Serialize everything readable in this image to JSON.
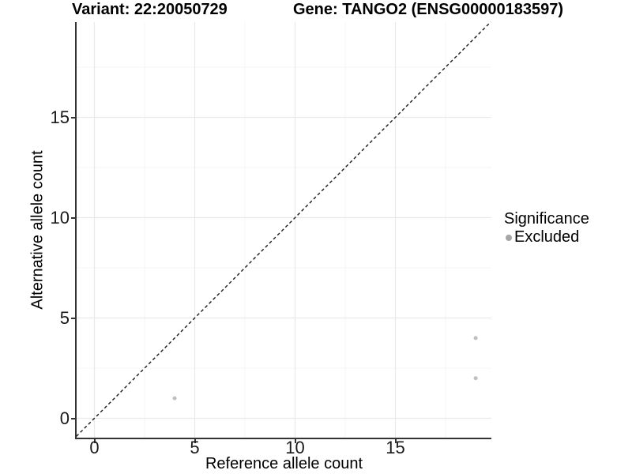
{
  "figure": {
    "title_variant": "Variant: 22:20050729",
    "title_gene": "Gene: TANGO2 (ENSG00000183597)"
  },
  "chart_data": {
    "type": "scatter",
    "title": "Variant: 22:20050729   Gene: TANGO2 (ENSG00000183597)",
    "xlabel": "Reference allele count",
    "ylabel": "Alternative allele count",
    "xlim": [
      -0.9,
      19.8
    ],
    "ylim": [
      -0.95,
      19.75
    ],
    "x_ticks": [
      0,
      5,
      10,
      15
    ],
    "y_ticks": [
      0,
      5,
      10,
      15
    ],
    "x_minor_ticks": [
      2.5,
      7.5,
      12.5,
      17.5
    ],
    "y_minor_ticks": [
      2.5,
      7.5,
      12.5,
      17.5
    ],
    "grid": "major and minor gridlines on",
    "legend_position": "right",
    "series": [
      {
        "name": "Excluded",
        "color": "#bfbfbf",
        "points": [
          {
            "x": 4,
            "y": 1
          },
          {
            "x": 19,
            "y": 2
          },
          {
            "x": 19,
            "y": 4
          }
        ]
      }
    ],
    "identity_line": {
      "slope": 1,
      "intercept": 0,
      "style": "dashed",
      "color": "#1a1a1a"
    }
  },
  "legend": {
    "title": "Significance",
    "items": [
      {
        "label": "Excluded",
        "color": "#a6a6a6"
      }
    ]
  },
  "colors": {
    "background": "#ffffff",
    "axis_line": "#333333",
    "grid_major": "#e9e9e9",
    "grid_minor": "#f4f4f4",
    "point_fill": "#bfbfbf",
    "reference_line": "#1a1a1a"
  }
}
